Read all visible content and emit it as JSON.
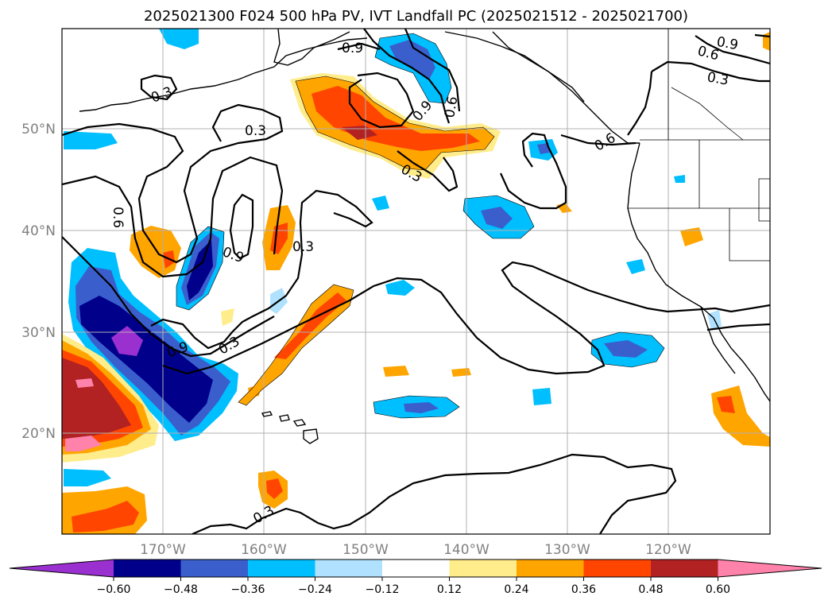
{
  "title": "2025021300 F024 500 hPa PV, IVT Landfall PC (2025021512 - 2025021700)",
  "map": {
    "lat_labels": [
      "50°N",
      "40°N",
      "30°N",
      "20°N"
    ],
    "lon_labels": [
      "170°W",
      "160°W",
      "150°W",
      "140°W",
      "130°W",
      "120°W"
    ],
    "contour_labels": [
      "0.9",
      "0.6",
      "0.9",
      "0.6",
      "0.3",
      "0.3",
      "0.3",
      "0.9",
      "0.6",
      "0.6",
      "0.3",
      "0.9",
      "0.3",
      "0.9",
      "0.3",
      "0.3"
    ]
  },
  "colorbar": {
    "ticks": [
      "−0.60",
      "−0.48",
      "−0.36",
      "−0.24",
      "−0.12",
      "0.12",
      "0.24",
      "0.36",
      "0.48",
      "0.60"
    ],
    "colors": [
      "#9b30d0",
      "#00008b",
      "#3a5fcd",
      "#00bfff",
      "#b0e2ff",
      "#ffffff",
      "#ffec8b",
      "#ffa500",
      "#ff4500",
      "#b22222",
      "#ff82ab"
    ]
  }
}
